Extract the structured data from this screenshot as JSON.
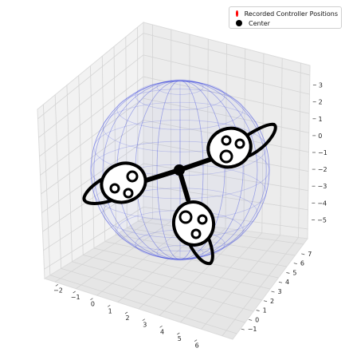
{
  "chart_data": {
    "type": "scatter",
    "title": "",
    "xlabel": "",
    "ylabel": "",
    "zlabel": "",
    "x_ticks": [
      "−2",
      "−1",
      "0",
      "1",
      "2",
      "3",
      "4",
      "5",
      "6"
    ],
    "y_ticks": [
      "−1",
      "0",
      "1",
      "2",
      "3",
      "4",
      "5",
      "6",
      "7"
    ],
    "z_ticks": [
      "−5",
      "−4",
      "−3",
      "−2",
      "−1",
      "0",
      "1",
      "2",
      "3"
    ],
    "xlim": [
      -2.5,
      6.5
    ],
    "ylim": [
      -1.5,
      7.5
    ],
    "zlim": [
      -5.5,
      3.5
    ],
    "grid": true,
    "legend_position": "top-right",
    "series": [
      {
        "name": "Recorded Controller Positions",
        "color": "#ff0000",
        "values": []
      },
      {
        "name": "Center",
        "color": "#000000",
        "values": []
      }
    ],
    "sphere_color": "#3340e0"
  }
}
